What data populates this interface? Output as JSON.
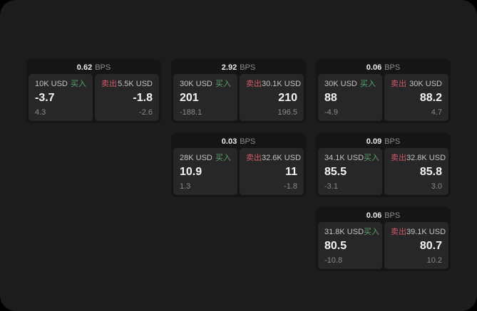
{
  "labels": {
    "buy": "买入",
    "sell": "卖出",
    "bps_unit": "BPS"
  },
  "colors": {
    "buy_accent": "#56a26e",
    "sell_accent": "#cf5a6a",
    "panel_bg": "#1c1c1c",
    "card_bg": "#151515",
    "tile_bg": "#272727"
  },
  "cards": [
    {
      "bps": "0.62",
      "buy": {
        "notional": "10K USD",
        "price": "-3.7",
        "delta": "4.3"
      },
      "sell": {
        "notional": "5.5K USD",
        "price": "-1.8",
        "delta": "-2.6"
      }
    },
    {
      "bps": "2.92",
      "buy": {
        "notional": "30K USD",
        "price": "201",
        "delta": "-188.1"
      },
      "sell": {
        "notional": "30.1K USD",
        "price": "210",
        "delta": "196.5"
      }
    },
    {
      "bps": "0.06",
      "buy": {
        "notional": "30K USD",
        "price": "88",
        "delta": "-4.9"
      },
      "sell": {
        "notional": "30K USD",
        "price": "88.2",
        "delta": "4.7"
      }
    },
    {
      "bps": "0.03",
      "buy": {
        "notional": "28K USD",
        "price": "10.9",
        "delta": "1.3"
      },
      "sell": {
        "notional": "32.6K USD",
        "price": "11",
        "delta": "-1.8"
      }
    },
    {
      "bps": "0.09",
      "buy": {
        "notional": "34.1K USD",
        "price": "85.5",
        "delta": "-3.1"
      },
      "sell": {
        "notional": "32.8K USD",
        "price": "85.8",
        "delta": "3.0"
      }
    },
    {
      "bps": "0.06",
      "buy": {
        "notional": "31.8K USD",
        "price": "80.5",
        "delta": "-10.8"
      },
      "sell": {
        "notional": "39.1K USD",
        "price": "80.7",
        "delta": "10.2"
      }
    }
  ]
}
